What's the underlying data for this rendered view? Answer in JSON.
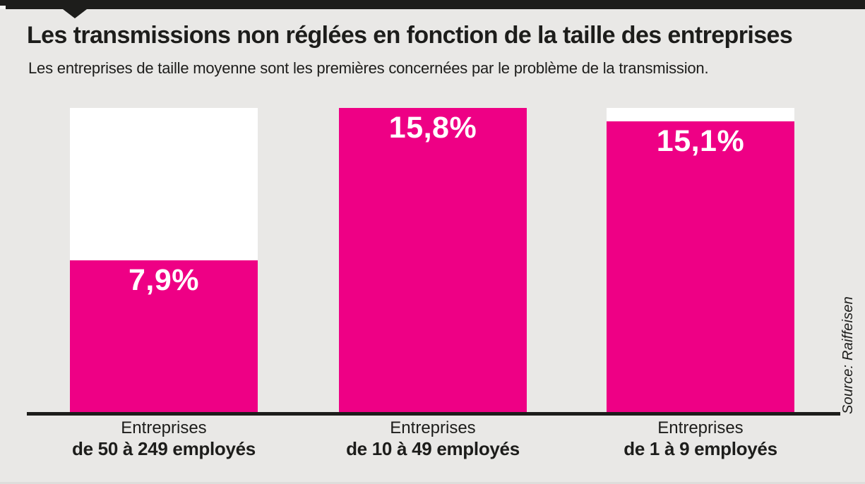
{
  "header": {
    "title": "Les transmissions non réglées en fonction de la taille des entreprises",
    "subtitle": "Les entreprises de taille moyenne sont les premières concernées par le problème de la transmission."
  },
  "source": "Source: Raiffeisen",
  "colors": {
    "bar_fill": "#ee0085",
    "bar_track": "#ffffff",
    "background": "#e9e8e6",
    "ink": "#1d1d1b"
  },
  "chart_data": {
    "type": "bar",
    "title": "Les transmissions non réglées en fonction de la taille des entreprises",
    "subtitle": "Les entreprises de taille moyenne sont les premières concernées par le problème de la transmission.",
    "categories": [
      {
        "line1": "Entreprises",
        "line2": "de 50 à 249 employés"
      },
      {
        "line1": "Entreprises",
        "line2": "de 10 à 49 employés"
      },
      {
        "line1": "Entreprises",
        "line2": "de 1 à 9 employés"
      }
    ],
    "values": [
      7.9,
      15.8,
      15.1
    ],
    "value_labels": [
      "7,9%",
      "15,8%",
      "15,1%"
    ],
    "unit": "%",
    "xlabel": "",
    "ylabel": "",
    "ylim": [
      0,
      15.8
    ],
    "grid": false,
    "legend": false,
    "source_label": "Source: Raiffeisen"
  }
}
